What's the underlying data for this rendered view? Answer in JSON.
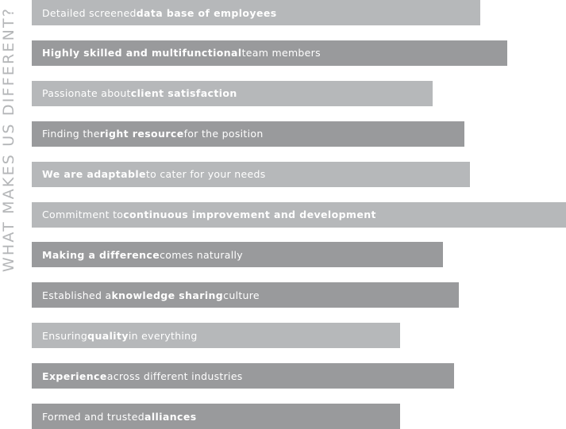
{
  "side_title": "WHAT MAKES US DIFFERENT?",
  "items": [
    {
      "pre": "Detailed screened ",
      "bold": "data base of employees",
      "post": "",
      "tone": "light",
      "length": 0.84
    },
    {
      "pre": "",
      "bold": "Highly skilled and multifunctional",
      "post": " team members",
      "tone": "dark",
      "length": 0.89
    },
    {
      "pre": "Passionate about ",
      "bold": "client satisfaction",
      "post": "",
      "tone": "light",
      "length": 0.75
    },
    {
      "pre": "Finding the ",
      "bold": "right resource",
      "post": " for the position",
      "tone": "dark",
      "length": 0.81
    },
    {
      "pre": "",
      "bold": "We are adaptable",
      "post": " to cater for your needs",
      "tone": "light",
      "length": 0.82
    },
    {
      "pre": "Commitment to ",
      "bold": "continuous improvement and development",
      "post": "",
      "tone": "light",
      "length": 1.0
    },
    {
      "pre": "",
      "bold": "Making a difference",
      "post": " comes naturally",
      "tone": "dark",
      "length": 0.77
    },
    {
      "pre": "Established a ",
      "bold": "knowledge sharing",
      "post": " culture",
      "tone": "dark",
      "length": 0.8
    },
    {
      "pre": "Ensuring ",
      "bold": "quality",
      "post": " in everything",
      "tone": "light",
      "length": 0.69
    },
    {
      "pre": "",
      "bold": "Experience",
      "post": " across different industries",
      "tone": "dark",
      "length": 0.79
    },
    {
      "pre": "Formed and trusted ",
      "bold": "alliances",
      "post": "",
      "tone": "dark",
      "length": 0.69
    }
  ],
  "colors": {
    "dark_bar": "#999a9c",
    "light_bar": "#b6b8ba",
    "text": "#ffffff",
    "side_title": "#b4b6b8"
  }
}
